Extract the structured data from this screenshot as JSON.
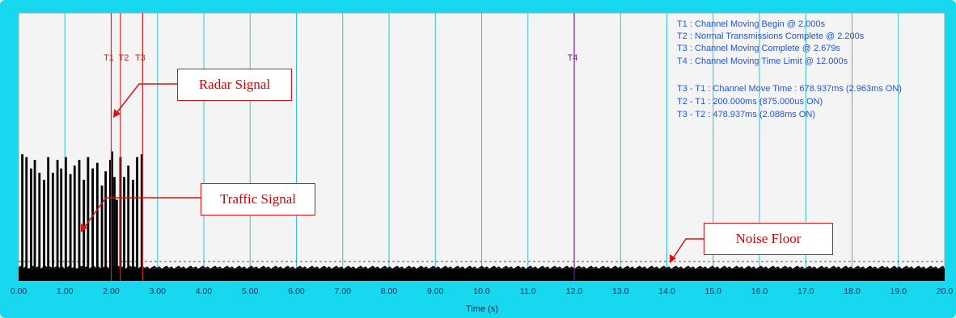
{
  "chart_data": {
    "type": "bar",
    "xlabel": "Time (s)",
    "ylabel": "",
    "xlim": [
      0,
      20
    ],
    "x_ticks": [
      "0.00",
      "1.00",
      "2.00",
      "3.00",
      "4.00",
      "5.00",
      "6.00",
      "7.00",
      "8.00",
      "9.00",
      "10.0",
      "11.0",
      "12.0",
      "13.0",
      "14.0",
      "15.0",
      "16.0",
      "17.0",
      "18.0",
      "19.0",
      "20.0"
    ],
    "grid": "vertical",
    "colors": {
      "frame": "#17d8ef",
      "plot_bg": "#f4f4f4",
      "grid": "#2ec4cc",
      "signal": "#000000",
      "marker": "#d62020",
      "limit_marker": "#7a1f8a",
      "legend_text": "#2255dd"
    },
    "markers": [
      {
        "label": "T1",
        "x": 2.0
      },
      {
        "label": "T2",
        "x": 2.2
      },
      {
        "label": "T3",
        "x": 2.679
      },
      {
        "label": "T4",
        "x": 12.0
      }
    ],
    "annotations": [
      "T1 : Channel Moving Begin @ 2.000s",
      "T2 : Normal Transmissions Complete @ 2.200s",
      "T3 : Channel Moving Complete @ 2.679s",
      "T4 : Channel Moving Time Limit @ 12.000s",
      "T3 - T1 : Channel Move Time : 678.937ms (2.963ms ON)",
      "T2 - T1 : 200.000ms (875.000us ON)",
      "T3 - T2 : 478.937ms (2.088ms ON)"
    ],
    "callouts": {
      "radar": "Radar Signal",
      "traffic": "Traffic Signal",
      "noise": "Noise Floor"
    },
    "signal_bursts": {
      "x": [
        0.08,
        0.17,
        0.27,
        0.35,
        0.45,
        0.55,
        0.64,
        0.74,
        0.84,
        0.92,
        1.02,
        1.12,
        1.21,
        1.31,
        1.41,
        1.5,
        1.6,
        1.7,
        1.8,
        1.88,
        1.98,
        2.02,
        2.07,
        2.12,
        2.2,
        2.28,
        2.37,
        2.47,
        2.56,
        2.66
      ],
      "level": [
        0.88,
        0.86,
        0.78,
        0.84,
        0.75,
        0.7,
        0.86,
        0.75,
        0.84,
        0.78,
        0.86,
        0.74,
        0.8,
        0.84,
        0.7,
        0.86,
        0.78,
        0.82,
        0.66,
        0.76,
        0.84,
        0.9,
        0.72,
        0.56,
        0.86,
        0.72,
        0.8,
        0.7,
        0.86,
        0.88
      ]
    },
    "noise_floor_level": 0.03
  }
}
